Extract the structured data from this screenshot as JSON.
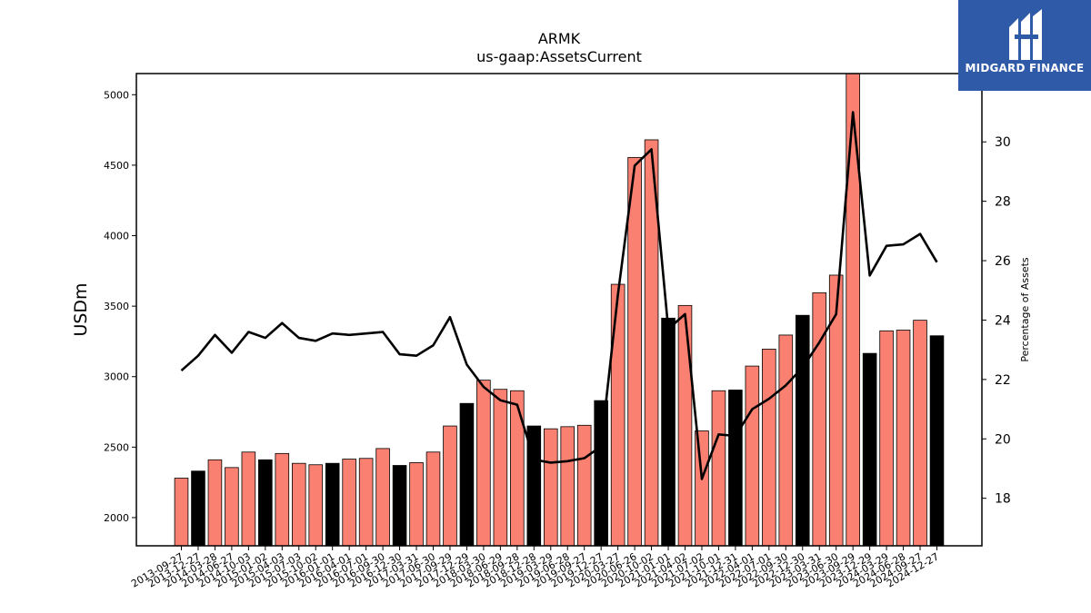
{
  "chart_data": {
    "type": "bar",
    "title": "ARMK",
    "subtitle": "us-gaap:AssetsCurrent",
    "ylabel": "USDm",
    "y2label": "Percentage of Assets",
    "ylim": [
      1800,
      5150
    ],
    "y2lim": [
      16.4,
      32.3
    ],
    "yticks": [
      2000,
      2500,
      3000,
      3500,
      4000,
      4500,
      5000
    ],
    "y2ticks": [
      18,
      20,
      22,
      24,
      26,
      28,
      30
    ],
    "colors": {
      "annual": "#000000",
      "quarterly": "#fa8072",
      "line": "#000000"
    },
    "categories": [
      "2013-09-27",
      "2013-12-27",
      "2014-03-28",
      "2014-06-27",
      "2014-10-03",
      "2015-01-02",
      "2015-04-03",
      "2015-07-03",
      "2015-10-02",
      "2016-01-01",
      "2016-04-01",
      "2016-07-01",
      "2016-09-30",
      "2016-12-30",
      "2017-03-31",
      "2017-06-30",
      "2017-09-29",
      "2017-12-29",
      "2018-03-30",
      "2018-06-29",
      "2018-09-28",
      "2018-12-28",
      "2019-03-29",
      "2019-06-28",
      "2019-09-27",
      "2019-12-27",
      "2020-03-27",
      "2020-06-26",
      "2020-10-02",
      "2021-01-01",
      "2021-04-02",
      "2021-07-02",
      "2021-10-01",
      "2021-12-31",
      "2022-04-01",
      "2022-07-01",
      "2022-09-30",
      "2022-12-30",
      "2023-03-31",
      "2023-06-30",
      "2023-09-29",
      "2023-12-29",
      "2024-03-29",
      "2024-06-28",
      "2024-09-27",
      "2024-12-27"
    ],
    "series": [
      {
        "type": "bar",
        "values": [
          2280,
          2330,
          2410,
          2355,
          2465,
          2410,
          2455,
          2385,
          2375,
          2385,
          2415,
          2420,
          2490,
          2370,
          2390,
          2465,
          2650,
          2810,
          2975,
          2910,
          2900,
          2650,
          2630,
          2645,
          2655,
          2830,
          3655,
          4555,
          4680,
          3415,
          3505,
          2615,
          2900,
          2905,
          3075,
          3195,
          3295,
          3435,
          3595,
          3720,
          5150,
          3165,
          3325,
          3330,
          3400,
          3290
        ],
        "annual": [
          false,
          true,
          false,
          false,
          false,
          true,
          false,
          false,
          false,
          true,
          false,
          false,
          false,
          true,
          false,
          false,
          false,
          true,
          false,
          false,
          false,
          true,
          false,
          false,
          false,
          true,
          false,
          false,
          false,
          true,
          false,
          false,
          false,
          true,
          false,
          false,
          false,
          true,
          false,
          false,
          false,
          true,
          false,
          false,
          false,
          true
        ]
      },
      {
        "name": "Percentage of Assets",
        "type": "line",
        "axis": "right",
        "values": [
          22.3,
          22.8,
          23.5,
          22.9,
          23.6,
          23.4,
          23.9,
          23.4,
          23.3,
          23.55,
          23.5,
          23.55,
          23.6,
          22.85,
          22.8,
          23.15,
          24.1,
          22.5,
          21.75,
          21.3,
          21.15,
          19.3,
          19.2,
          19.25,
          19.35,
          19.75,
          24.85,
          29.2,
          29.75,
          23.7,
          24.2,
          18.65,
          20.15,
          20.1,
          21.0,
          21.35,
          21.8,
          22.4,
          23.25,
          24.2,
          31.0,
          25.5,
          26.5,
          26.55,
          26.9,
          25.95
        ]
      }
    ],
    "grid": false,
    "legend": "none"
  },
  "logo": {
    "text": "MIDGARD FINANCE",
    "icon": "midgard-logo-icon"
  }
}
